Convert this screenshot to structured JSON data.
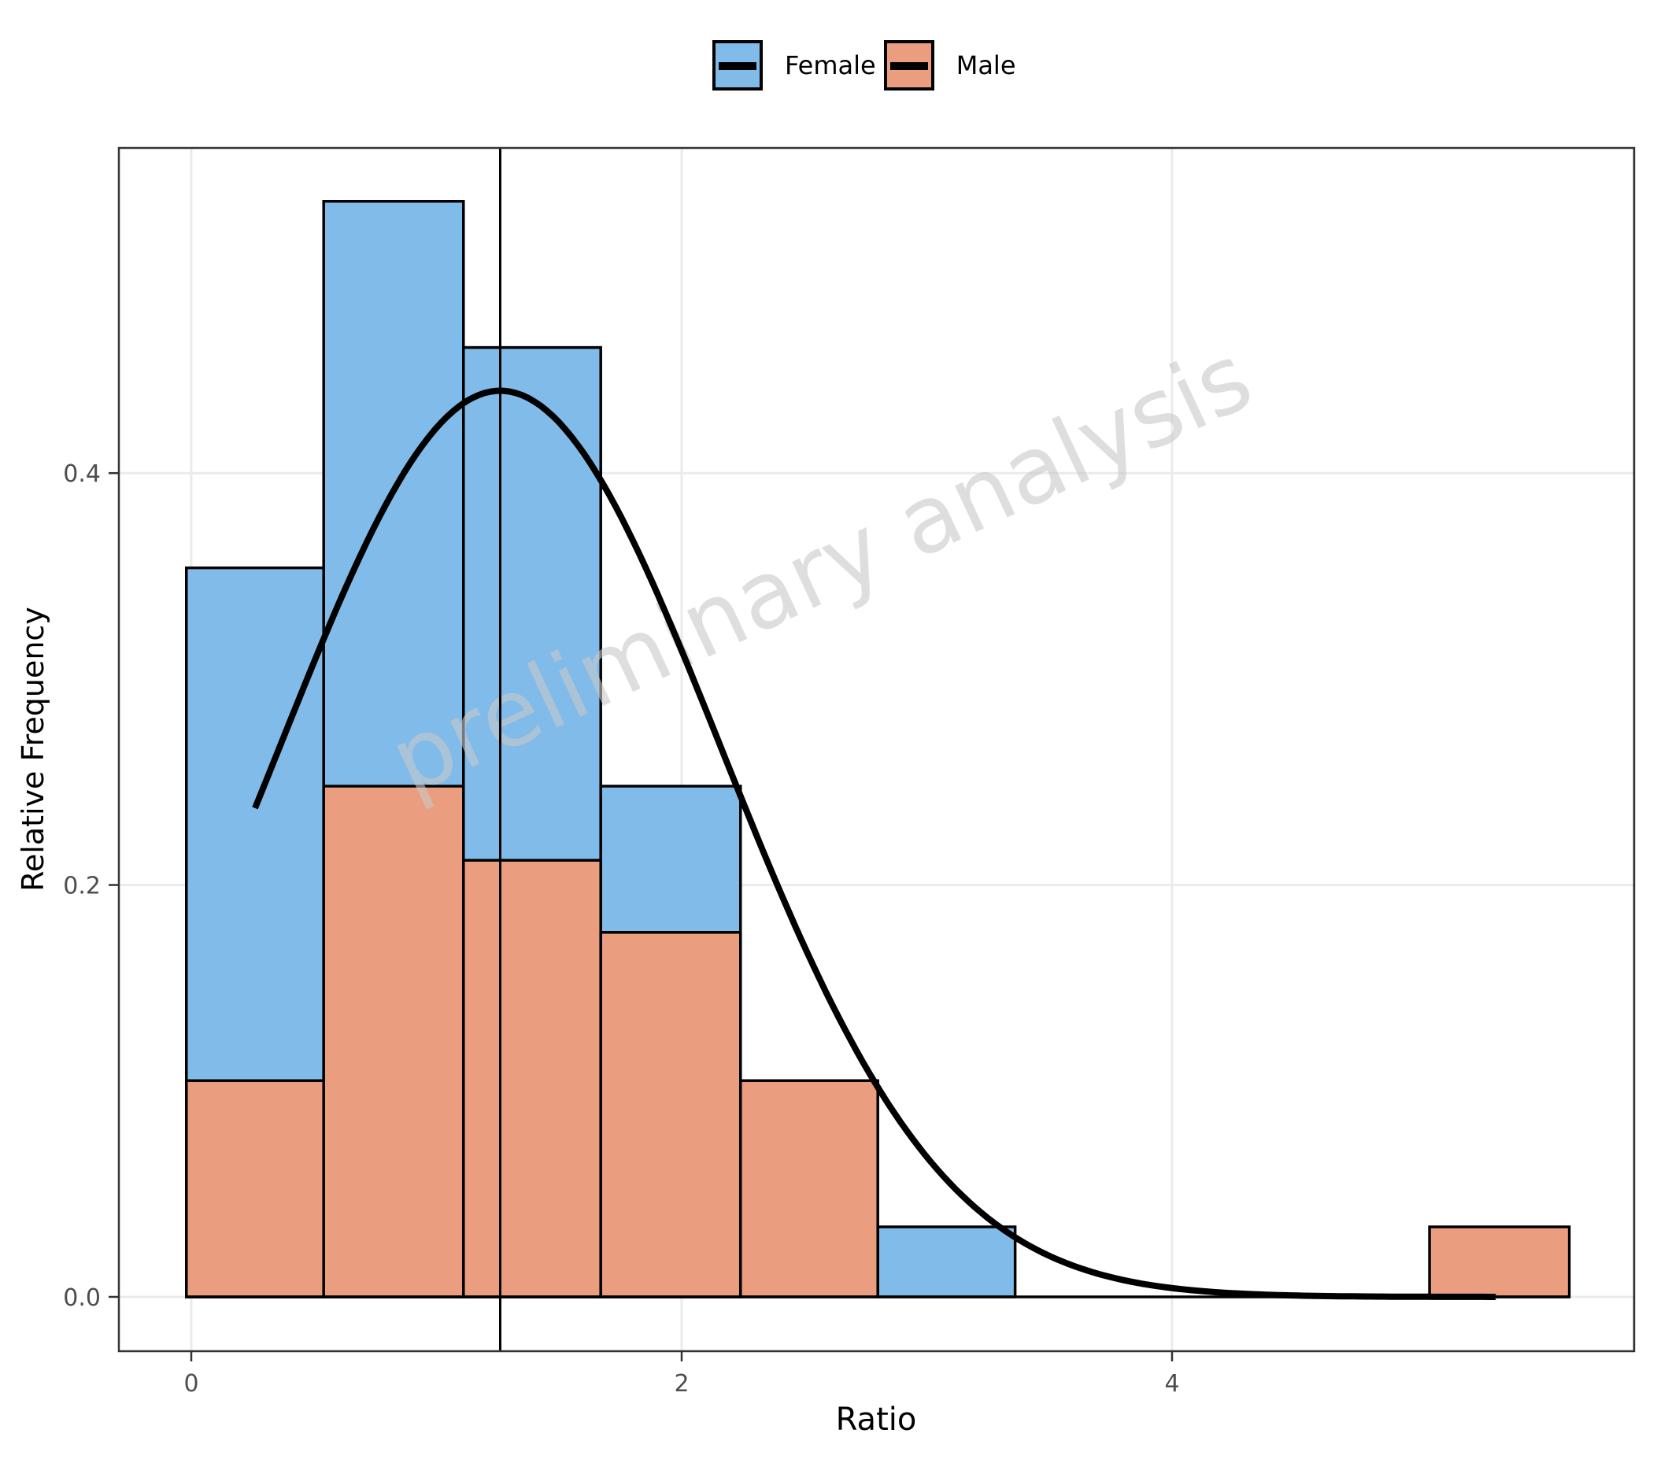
{
  "legend": {
    "items": [
      {
        "label": "Female",
        "color": "#80BBEA"
      },
      {
        "label": "Male",
        "color": "#EA9D7F"
      }
    ]
  },
  "axes": {
    "xlabel": "Ratio",
    "ylabel": "Relative Frequency",
    "xticks": [
      "0",
      "2",
      "4"
    ],
    "yticks": [
      "0.0",
      "0.2",
      "0.4"
    ]
  },
  "watermark": "preliminary analysis",
  "chart_data": {
    "type": "bar",
    "subtype": "histogram_overlay_with_normal_curve",
    "title": "",
    "xlabel": "Ratio",
    "ylabel": "Relative Frequency",
    "xlim": [
      -0.3,
      5.8
    ],
    "ylim": [
      -0.065,
      0.565
    ],
    "grid": true,
    "legend_position": "top",
    "bin_edges": [
      -0.02,
      0.54,
      1.11,
      1.67,
      2.24,
      2.8,
      3.36,
      3.93,
      4.49,
      5.05,
      5.62
    ],
    "series": [
      {
        "name": "Female",
        "color": "#80BBEA",
        "values": [
          0.354,
          0.532,
          0.461,
          0.248,
          0.0,
          0.034,
          0.0,
          0.0,
          0.0,
          0.0
        ]
      },
      {
        "name": "Male",
        "color": "#EA9D7F",
        "values": [
          0.105,
          0.248,
          0.212,
          0.177,
          0.105,
          0.0,
          0.0,
          0.0,
          0.0,
          0.034
        ]
      }
    ],
    "normal_curve": {
      "mean": 1.26,
      "sd": 0.9,
      "peak": 0.44,
      "x_range": [
        0.26,
        5.32
      ],
      "color": "#000000"
    },
    "vline": {
      "x": 1.26,
      "color": "#000000"
    }
  }
}
